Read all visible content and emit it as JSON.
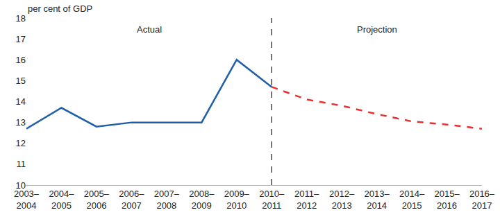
{
  "chart_data": {
    "type": "line",
    "y_label": "per cent of GDP",
    "categories": [
      "2003–2004",
      "2004–2005",
      "2005–2006",
      "2006–2007",
      "2007–2008",
      "2008–2009",
      "2009–2010",
      "2010–2011",
      "2011–2012",
      "2012–2013",
      "2013–2014",
      "2014–2015",
      "2015–2016",
      "2016–2017"
    ],
    "series": [
      {
        "name": "Actual",
        "color": "#1f5ea8",
        "line_style": "solid",
        "values": [
          12.7,
          13.7,
          12.8,
          13.0,
          13.0,
          13.0,
          16.0,
          14.7,
          null,
          null,
          null,
          null,
          null,
          null
        ]
      },
      {
        "name": "Projection",
        "color": "#e8312f",
        "line_style": "dashed",
        "values": [
          null,
          null,
          null,
          null,
          null,
          null,
          null,
          14.7,
          14.1,
          13.8,
          13.4,
          13.05,
          12.9,
          12.7
        ]
      }
    ],
    "ylim": [
      10,
      18
    ],
    "yticks": [
      10,
      11,
      12,
      13,
      14,
      15,
      16,
      17,
      18
    ],
    "grid": false
  }
}
